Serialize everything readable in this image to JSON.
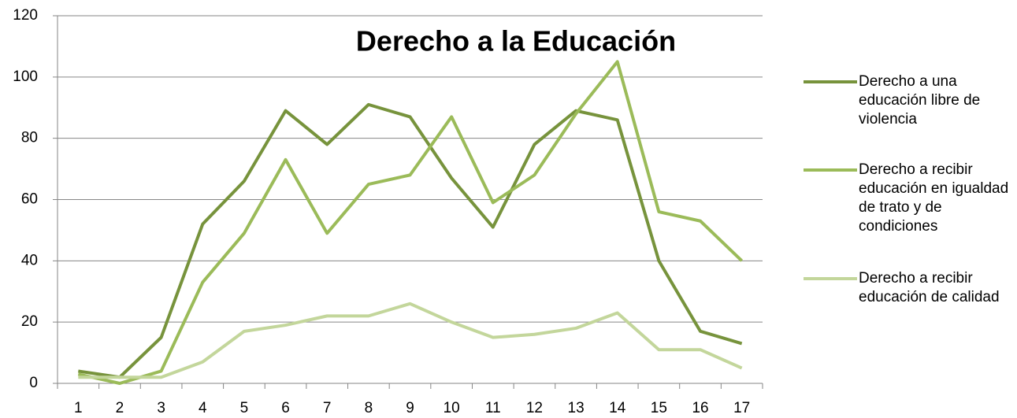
{
  "chart_data": {
    "type": "line",
    "title": "Derecho a la Educación",
    "categories": [
      "1",
      "2",
      "3",
      "4",
      "5",
      "6",
      "7",
      "8",
      "9",
      "10",
      "11",
      "12",
      "13",
      "14",
      "15",
      "16",
      "17"
    ],
    "series": [
      {
        "name": "Derecho a una educación libre de violencia",
        "color": "#77933c",
        "values": [
          4,
          2,
          15,
          52,
          66,
          89,
          78,
          91,
          87,
          67,
          51,
          78,
          89,
          86,
          40,
          17,
          13
        ]
      },
      {
        "name": "Derecho a recibir educación en igualdad de trato y de condiciones",
        "color": "#9bbb59",
        "values": [
          3,
          0,
          4,
          33,
          49,
          73,
          49,
          65,
          68,
          87,
          59,
          68,
          88,
          105,
          56,
          53,
          40
        ]
      },
      {
        "name": "Derecho a recibir educación de calidad",
        "color": "#c3d69b",
        "values": [
          2,
          2,
          2,
          7,
          17,
          19,
          22,
          22,
          26,
          20,
          15,
          16,
          18,
          23,
          11,
          11,
          5
        ]
      }
    ],
    "ylim": [
      0,
      120
    ],
    "yticks": [
      0,
      20,
      40,
      60,
      80,
      100,
      120
    ],
    "grid": true,
    "legend": "right"
  }
}
